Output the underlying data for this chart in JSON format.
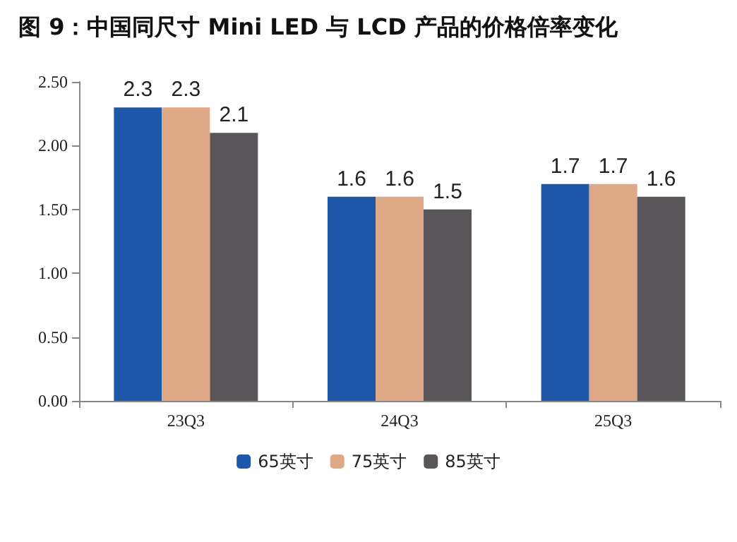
{
  "chart_data": {
    "type": "bar",
    "title": "图 9：中国同尺寸 Mini LED 与 LCD 产品的价格倍率变化",
    "categories": [
      "23Q3",
      "24Q3",
      "25Q3"
    ],
    "series": [
      {
        "name": "65英寸",
        "color": "#1f58a8",
        "values": [
          2.3,
          1.6,
          1.7
        ]
      },
      {
        "name": "75英寸",
        "color": "#dfa886",
        "values": [
          2.3,
          1.6,
          1.7
        ]
      },
      {
        "name": "85英寸",
        "color": "#5a5558",
        "values": [
          2.1,
          1.5,
          1.6
        ]
      }
    ],
    "ylim": [
      0,
      2.5
    ],
    "yticks": [
      {
        "value": 0,
        "label": "0.00"
      },
      {
        "value": 0.5,
        "label": "0.50"
      },
      {
        "value": 1,
        "label": "1.00"
      },
      {
        "value": 1.5,
        "label": "1.50"
      },
      {
        "value": 2,
        "label": "2.00"
      },
      {
        "value": 2.5,
        "label": "2.50"
      }
    ],
    "grid": false,
    "legend": "bottom",
    "data_labels": true
  }
}
